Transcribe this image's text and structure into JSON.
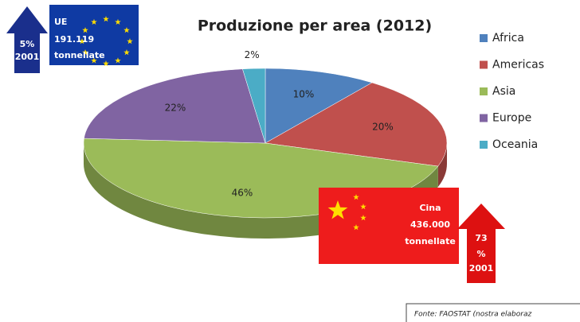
{
  "chart_data": {
    "type": "pie",
    "title": "Produzione per area (2012)",
    "categories": [
      "Africa",
      "Americas",
      "Asia",
      "Europe",
      "Oceania"
    ],
    "values": [
      10,
      20,
      46,
      22,
      2
    ],
    "value_labels": [
      "10%",
      "20%",
      "46%",
      "22%",
      "2%"
    ],
    "colors": [
      "#4f81bd",
      "#c0504d",
      "#9bbb59",
      "#8064a2",
      "#4bacc6"
    ],
    "legend": "right",
    "annotations": {
      "eu": [
        "UE",
        "191.119",
        "tonnellate"
      ],
      "eu_arrow": [
        "5%",
        "2001"
      ],
      "china": [
        "Cina",
        "436.000",
        "tonnellate"
      ],
      "china_arrow": [
        "73",
        "%",
        "2001"
      ],
      "source": "Fonte: FAOSTAT  (nostra elaboraz"
    }
  }
}
